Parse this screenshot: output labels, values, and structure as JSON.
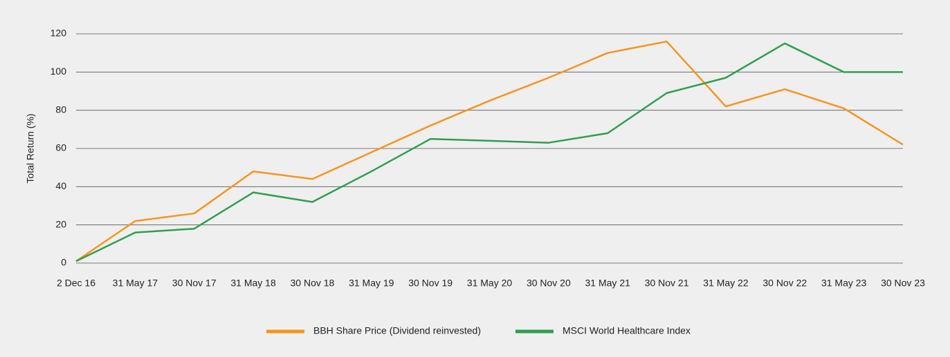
{
  "chart_data": {
    "type": "line",
    "y_label": "Total Return (%)",
    "categories": [
      "2 Dec 16",
      "31 May 17",
      "30 Nov 17",
      "31 May 18",
      "30 Nov 18",
      "31 May 19",
      "30 Nov 19",
      "31 May 20",
      "30 Nov 20",
      "31 May 21",
      "30 Nov 21",
      "31 May 22",
      "30 Nov 22",
      "31 May 23",
      "30 Nov 23"
    ],
    "series": [
      {
        "name": "BBH Share Price (Dividend reinvested)",
        "color": "#f7941d",
        "values": [
          1,
          22,
          26,
          48,
          44,
          58,
          72,
          85,
          97,
          110,
          116,
          82,
          91,
          81,
          62
        ]
      },
      {
        "name": "MSCI World Healthcare Index",
        "color": "#2e9e4f",
        "values": [
          1,
          16,
          18,
          37,
          32,
          48,
          65,
          64,
          63,
          68,
          89,
          97,
          115,
          100,
          100
        ]
      }
    ],
    "ylim": [
      0,
      120
    ],
    "yticks": [
      0,
      20,
      40,
      60,
      80,
      100,
      120
    ],
    "grid": true,
    "legend": "bottom"
  }
}
